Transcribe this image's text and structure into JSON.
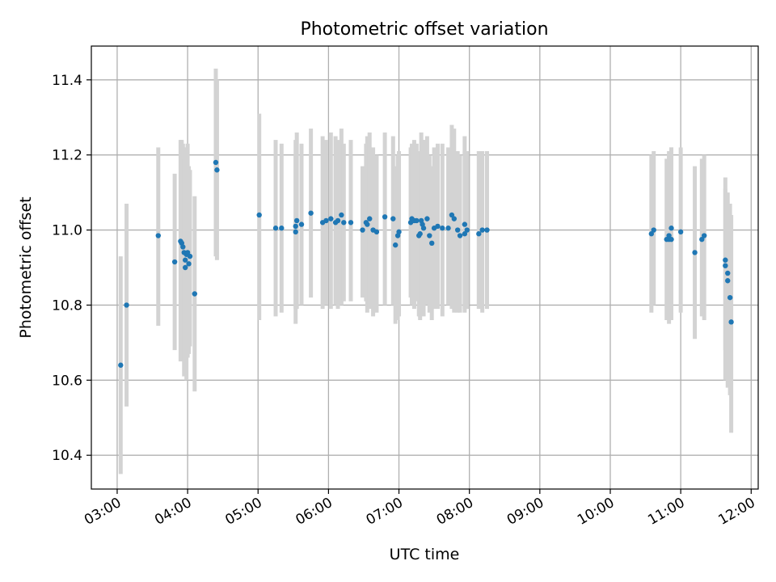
{
  "chart_data": {
    "type": "scatter",
    "title": "Photometric offset variation",
    "xlabel": "UTC time",
    "ylabel": "Photometric offset",
    "x_ticks": [
      "03:00",
      "04:00",
      "05:00",
      "06:00",
      "07:00",
      "08:00",
      "09:00",
      "10:00",
      "11:00",
      "12:00"
    ],
    "y_ticks": [
      "10.4",
      "10.6",
      "10.8",
      "11.0",
      "11.2",
      "11.4"
    ],
    "xlim": [
      "02:38",
      "12:06"
    ],
    "ylim": [
      10.31,
      11.49
    ],
    "grid": true,
    "colors": {
      "points": "#1f77b4",
      "errorbars": "#d3d3d3",
      "grid": "#b0b0b0"
    },
    "series": [
      {
        "x": [
          "03:03",
          "03:08",
          "03:35",
          "03:49",
          "03:54",
          "03:55",
          "03:56",
          "03:57",
          "03:58",
          "03:58",
          "03:59",
          "04:00",
          "04:01",
          "04:02",
          "04:06",
          "04:24",
          "04:25",
          "05:01",
          "05:15",
          "05:20",
          "05:32",
          "05:32",
          "05:33",
          "05:37",
          "05:45",
          "05:55",
          "05:58",
          "06:02",
          "06:06",
          "06:08",
          "06:11",
          "06:13",
          "06:19",
          "06:29",
          "06:32",
          "06:33",
          "06:35",
          "06:38",
          "06:41",
          "06:48",
          "06:55",
          "06:57",
          "06:59",
          "07:00",
          "07:10",
          "07:11",
          "07:13",
          "07:15",
          "07:17",
          "07:18",
          "07:19",
          "07:20",
          "07:21",
          "07:24",
          "07:26",
          "07:28",
          "07:30",
          "07:33",
          "07:37",
          "07:42",
          "07:45",
          "07:47",
          "07:50",
          "07:52",
          "07:56",
          "07:56",
          "07:58",
          "08:08",
          "08:11",
          "08:15",
          "10:35",
          "10:37",
          "10:48",
          "10:50",
          "10:50",
          "10:52",
          "10:52",
          "11:00",
          "11:12",
          "11:18",
          "11:20",
          "11:38",
          "11:38",
          "11:40",
          "11:40",
          "11:42",
          "11:43"
        ],
        "y": [
          10.64,
          10.8,
          10.985,
          10.915,
          10.97,
          10.965,
          10.955,
          10.94,
          10.92,
          10.9,
          10.935,
          10.94,
          10.91,
          10.93,
          10.83,
          11.18,
          11.16,
          11.04,
          11.005,
          11.005,
          11.01,
          10.995,
          11.025,
          11.015,
          11.045,
          11.02,
          11.025,
          11.03,
          11.02,
          11.025,
          11.04,
          11.02,
          11.02,
          11.0,
          11.02,
          11.015,
          11.03,
          11.0,
          10.995,
          11.035,
          11.03,
          10.96,
          10.985,
          10.995,
          11.02,
          11.03,
          11.025,
          11.025,
          10.985,
          10.99,
          11.025,
          11.015,
          11.005,
          11.03,
          10.985,
          10.965,
          11.005,
          11.01,
          11.005,
          11.005,
          11.04,
          11.03,
          11.0,
          10.985,
          11.015,
          10.99,
          11.0,
          10.99,
          11.0,
          11.0,
          10.99,
          11.0,
          10.975,
          10.975,
          10.985,
          10.975,
          11.005,
          10.995,
          10.94,
          10.975,
          10.985,
          10.92,
          10.905,
          10.865,
          10.885,
          10.82,
          10.755
        ],
        "err_low": [
          10.35,
          10.53,
          10.745,
          10.68,
          10.65,
          10.66,
          10.67,
          10.61,
          10.63,
          10.66,
          10.6,
          10.66,
          10.67,
          10.69,
          10.57,
          10.93,
          10.92,
          10.76,
          10.77,
          10.78,
          10.75,
          10.79,
          10.79,
          10.8,
          10.82,
          10.79,
          10.8,
          10.79,
          10.8,
          10.79,
          10.8,
          10.81,
          10.81,
          10.82,
          10.81,
          10.78,
          10.79,
          10.77,
          10.78,
          10.8,
          10.8,
          10.75,
          10.76,
          10.77,
          10.82,
          10.8,
          10.79,
          10.81,
          10.77,
          10.76,
          10.8,
          10.79,
          10.77,
          10.8,
          10.78,
          10.76,
          10.79,
          10.79,
          10.77,
          10.8,
          10.79,
          10.78,
          10.78,
          10.78,
          10.78,
          10.79,
          10.79,
          10.79,
          10.78,
          10.79,
          10.78,
          10.8,
          10.76,
          10.75,
          10.76,
          10.76,
          10.78,
          10.78,
          10.71,
          10.77,
          10.76,
          10.6,
          10.68,
          10.62,
          10.58,
          10.56,
          10.46
        ],
        "err_high": [
          10.93,
          11.07,
          11.22,
          11.15,
          11.24,
          11.24,
          11.23,
          11.19,
          11.22,
          11.14,
          11.22,
          11.23,
          11.17,
          11.16,
          11.09,
          11.43,
          11.4,
          11.31,
          11.24,
          11.23,
          11.24,
          11.2,
          11.26,
          11.23,
          11.27,
          11.25,
          11.24,
          11.26,
          11.25,
          11.24,
          11.27,
          11.23,
          11.24,
          11.17,
          11.23,
          11.25,
          11.26,
          11.22,
          11.2,
          11.26,
          11.25,
          11.17,
          11.2,
          11.21,
          11.22,
          11.23,
          11.24,
          11.23,
          11.19,
          11.21,
          11.26,
          11.24,
          11.24,
          11.25,
          11.2,
          11.17,
          11.22,
          11.23,
          11.23,
          11.22,
          11.28,
          11.27,
          11.21,
          11.2,
          11.25,
          11.21,
          11.21,
          11.21,
          11.21,
          11.21,
          11.2,
          11.21,
          11.19,
          11.2,
          11.21,
          11.22,
          11.22,
          11.22,
          11.17,
          11.19,
          11.2,
          11.14,
          11.11,
          11.1,
          11.07,
          11.07,
          11.04
        ]
      }
    ]
  }
}
